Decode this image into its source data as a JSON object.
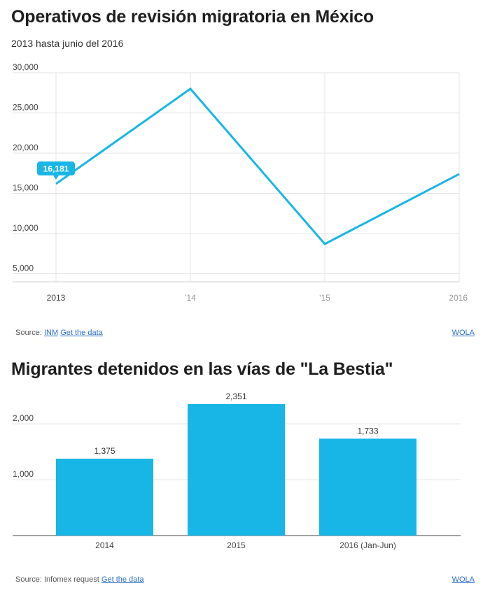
{
  "colors": {
    "accent": "#17b6e6",
    "grid": "#e3e3e3",
    "link": "#2a6fc9",
    "text": "#222222"
  },
  "chart_data": [
    {
      "type": "line",
      "title": "Operativos de revisión migratoria en México",
      "subtitle": "2013 hasta junio del 2016",
      "x": [
        2013,
        2014,
        2015,
        2016
      ],
      "x_tick_labels": [
        "2013",
        "'14",
        "'15",
        "2016"
      ],
      "values": [
        16181,
        28000,
        8700,
        17400
      ],
      "ylim": [
        4000,
        30000
      ],
      "y_ticks": [
        5000,
        10000,
        15000,
        20000,
        25000,
        30000
      ],
      "y_tick_labels": [
        "5,000",
        "10,000",
        "15,000",
        "20,000",
        "25,000",
        "30,000"
      ],
      "callout": {
        "label": "16,181",
        "index": 0
      },
      "grid": true,
      "xlabel": "",
      "ylabel": ""
    },
    {
      "type": "bar",
      "title": "Migrantes detenidos en las vías de \"La Bestia\"",
      "categories": [
        "2014",
        "2015",
        "2016 (Jan-Jun)"
      ],
      "values": [
        1375,
        2351,
        1733
      ],
      "value_labels": [
        "1,375",
        "2,351",
        "1,733"
      ],
      "ylim": [
        0,
        2351
      ],
      "y_ticks": [
        1000,
        2000
      ],
      "y_tick_labels": [
        "1,000",
        "2,000"
      ],
      "grid": true,
      "xlabel": "",
      "ylabel": ""
    }
  ],
  "footers": [
    {
      "source_prefix": "Source:",
      "source_name": "INM",
      "data_link": "Get the data",
      "credit": "WOLA"
    },
    {
      "source_prefix": "Source: Infomex request",
      "data_link": "Get the data",
      "credit": "WOLA"
    }
  ]
}
